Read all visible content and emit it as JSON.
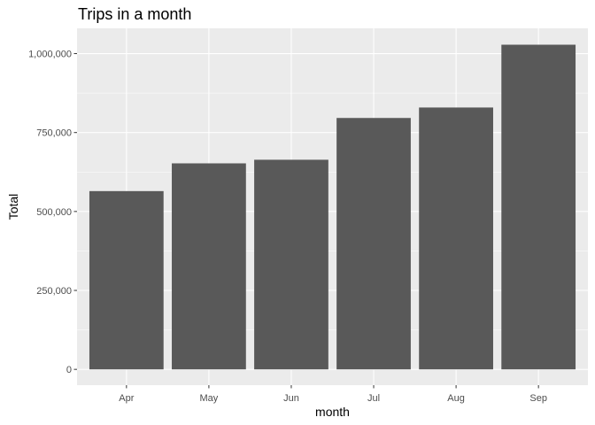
{
  "chart_data": {
    "type": "bar",
    "title": "Trips in a month",
    "xlabel": "month",
    "ylabel": "Total",
    "categories": [
      "Apr",
      "May",
      "Jun",
      "Jul",
      "Aug",
      "Sep"
    ],
    "values": [
      564516,
      652435,
      663844,
      796121,
      829275,
      1028136
    ],
    "ylim": [
      -50000,
      1080000
    ],
    "yticks": [
      0,
      250000,
      500000,
      750000,
      1000000
    ],
    "ytick_labels": [
      "0",
      "250,000",
      "500,000",
      "750,000",
      "1,000,000"
    ],
    "grid": true,
    "colors": {
      "panel_background": "#ebebeb",
      "grid_major": "#ffffff",
      "bar_fill": "#595959",
      "tick_mark": "#333333"
    }
  }
}
